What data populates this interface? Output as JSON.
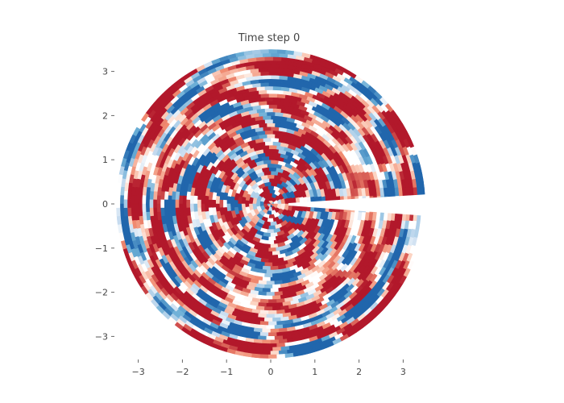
{
  "chart_data": {
    "type": "heatmap",
    "title": "Time step 0",
    "xlabel": "",
    "ylabel": "",
    "domain": "disk",
    "radius": 3.5,
    "xlim": [
      -3.5,
      3.5
    ],
    "ylim": [
      -3.5,
      3.5
    ],
    "x_ticks": [
      -3,
      -2,
      -1,
      0,
      1,
      2,
      3
    ],
    "y_ticks": [
      -3,
      -2,
      -1,
      0,
      1,
      2,
      3
    ],
    "x_tick_labels": [
      "−3",
      "−2",
      "−1",
      "0",
      "1",
      "2",
      "3"
    ],
    "y_tick_labels": [
      "−3",
      "−2",
      "−1",
      "0",
      "1",
      "2",
      "3"
    ],
    "grid": false,
    "colormap": "RdBu_r",
    "colormap_colors": {
      "strong_negative": "#2166ac",
      "negative": "#6baed6",
      "weak_negative": "#c6dbef",
      "neutral": "#ffffff",
      "weak_positive": "#fcd5c4",
      "positive": "#f08a70",
      "strong_positive": "#b2182b"
    },
    "slit": {
      "description_angle_deg": 0,
      "from_radius": 0.4,
      "to_radius": 3.5
    }
  }
}
